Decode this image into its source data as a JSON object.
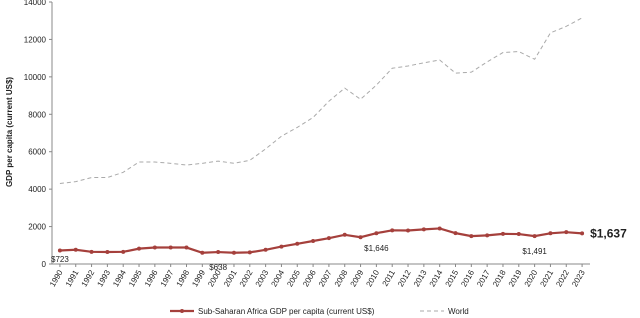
{
  "chart_data": {
    "type": "line",
    "y_label": "GDP per capita (current US$)",
    "x": [
      "1990",
      "1991",
      "1992",
      "1993",
      "1994",
      "1995",
      "1996",
      "1997",
      "1998",
      "1999",
      "2000",
      "2001",
      "2002",
      "2003",
      "2004",
      "2005",
      "2006",
      "2007",
      "2008",
      "2009",
      "2010",
      "2011",
      "2012",
      "2013",
      "2014",
      "2015",
      "2016",
      "2017",
      "2018",
      "2019",
      "2020",
      "2021",
      "2022",
      "2023"
    ],
    "ylim": [
      0,
      14000
    ],
    "yticks": [
      0,
      2000,
      4000,
      6000,
      8000,
      10000,
      12000,
      14000
    ],
    "series": [
      {
        "name": "Sub-Saharan Africa GDP per capita (current US$)",
        "color": "#a5403c",
        "values": [
          723,
          760,
          650,
          640,
          650,
          820,
          880,
          880,
          880,
          600,
          638,
          600,
          620,
          760,
          930,
          1080,
          1230,
          1380,
          1560,
          1430,
          1646,
          1800,
          1790,
          1850,
          1900,
          1650,
          1490,
          1530,
          1610,
          1600,
          1491,
          1640,
          1700,
          1637
        ],
        "value_labels": [
          "$723",
          null,
          null,
          null,
          null,
          null,
          null,
          null,
          null,
          null,
          "$638",
          null,
          null,
          null,
          null,
          null,
          null,
          null,
          null,
          null,
          "$1,646",
          null,
          null,
          null,
          null,
          null,
          null,
          null,
          null,
          null,
          "$1,491",
          null,
          null,
          "$1,637"
        ]
      },
      {
        "name": "World",
        "color": "#aaaaaa",
        "values": [
          4300,
          4400,
          4620,
          4620,
          4900,
          5450,
          5450,
          5380,
          5290,
          5380,
          5500,
          5380,
          5540,
          6150,
          6830,
          7300,
          7830,
          8700,
          9400,
          8800,
          9560,
          10460,
          10580,
          10750,
          10900,
          10200,
          10250,
          10800,
          11300,
          11350,
          10940,
          12350,
          12700,
          13150
        ]
      }
    ]
  }
}
